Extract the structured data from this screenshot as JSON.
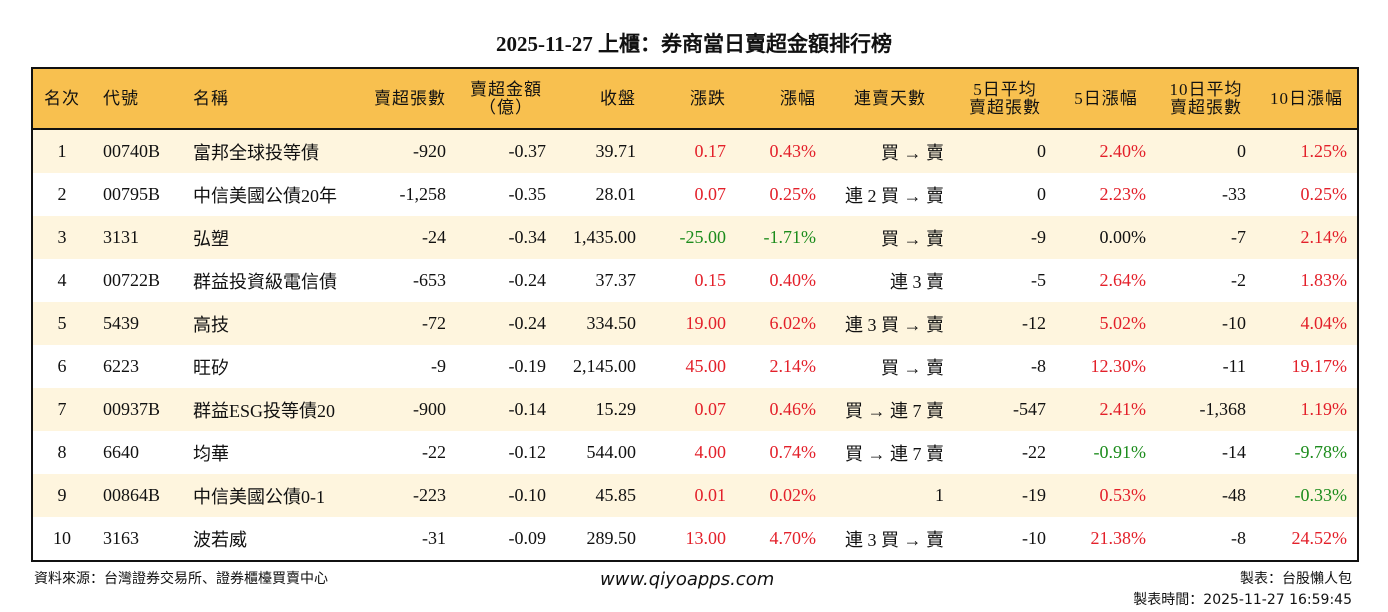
{
  "title": "2025-11-27 上櫃：券商當日賣超金額排行榜",
  "colors": {
    "header": "#F8C04F",
    "row_alt": "#FEF5DE",
    "up": "#E3202A",
    "down": "#1C8C1C"
  },
  "columns": [
    "名次",
    "代號",
    "名稱",
    "賣超張數",
    "賣超金額\n（億）",
    "收盤",
    "漲跌",
    "漲幅",
    "連賣天數",
    "5日平均\n賣超張數",
    "5日漲幅",
    "10日平均\n賣超張數",
    "10日漲幅"
  ],
  "rows": [
    [
      "1",
      "00740B",
      "富邦全球投等債",
      "-920",
      "-0.37",
      "39.71",
      "0.17",
      "0.43%",
      "買 → 賣",
      "0",
      "2.40%",
      "0",
      "1.25%"
    ],
    [
      "2",
      "00795B",
      "中信美國公債20年",
      "-1,258",
      "-0.35",
      "28.01",
      "0.07",
      "0.25%",
      "連 2 買 → 賣",
      "0",
      "2.23%",
      "-33",
      "0.25%"
    ],
    [
      "3",
      "3131",
      "弘塑",
      "-24",
      "-0.34",
      "1,435.00",
      "-25.00",
      "-1.71%",
      "買 → 賣",
      "-9",
      "0.00%",
      "-7",
      "2.14%"
    ],
    [
      "4",
      "00722B",
      "群益投資級電信債",
      "-653",
      "-0.24",
      "37.37",
      "0.15",
      "0.40%",
      "連 3 賣",
      "-5",
      "2.64%",
      "-2",
      "1.83%"
    ],
    [
      "5",
      "5439",
      "高技",
      "-72",
      "-0.24",
      "334.50",
      "19.00",
      "6.02%",
      "連 3 買 → 賣",
      "-12",
      "5.02%",
      "-10",
      "4.04%"
    ],
    [
      "6",
      "6223",
      "旺矽",
      "-9",
      "-0.19",
      "2,145.00",
      "45.00",
      "2.14%",
      "買 → 賣",
      "-8",
      "12.30%",
      "-11",
      "19.17%"
    ],
    [
      "7",
      "00937B",
      "群益ESG投等債20",
      "-900",
      "-0.14",
      "15.29",
      "0.07",
      "0.46%",
      "買 → 連 7 賣",
      "-547",
      "2.41%",
      "-1,368",
      "1.19%"
    ],
    [
      "8",
      "6640",
      "均華",
      "-22",
      "-0.12",
      "544.00",
      "4.00",
      "0.74%",
      "買 → 連 7 賣",
      "-22",
      "-0.91%",
      "-14",
      "-9.78%"
    ],
    [
      "9",
      "00864B",
      "中信美國公債0-1",
      "-223",
      "-0.10",
      "45.85",
      "0.01",
      "0.02%",
      "1",
      "-19",
      "0.53%",
      "-48",
      "-0.33%"
    ],
    [
      "10",
      "3163",
      "波若威",
      "-31",
      "-0.09",
      "289.50",
      "13.00",
      "4.70%",
      "連 3 買 → 賣",
      "-10",
      "21.38%",
      "-8",
      "24.52%"
    ]
  ],
  "footer": {
    "source": "資料來源：台灣證券交易所、證券櫃檯買賣中心",
    "website": "www.qiyoapps.com",
    "author": "製表：台股懶人包",
    "time": "製表時間：2025-11-27 16:59:45"
  }
}
